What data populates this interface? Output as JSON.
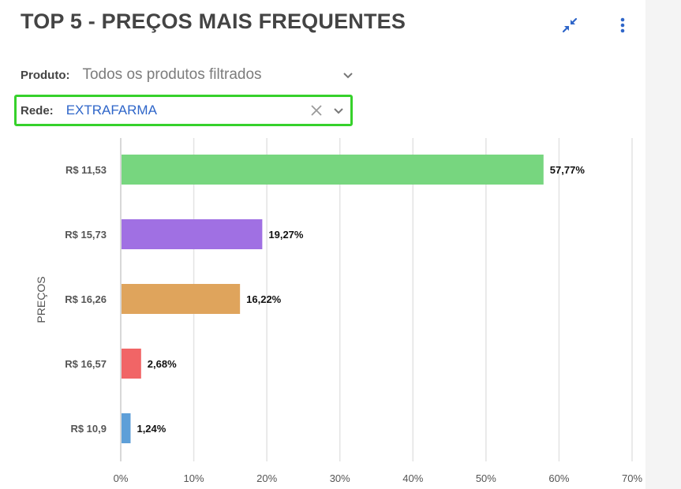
{
  "header": {
    "title": "TOP 5 - PREÇOS MAIS FREQUENTES",
    "collapse_icon": "collapse-arrows-icon",
    "menu_icon": "more-vertical-icon"
  },
  "filters": {
    "produto": {
      "label": "Produto:",
      "value": "Todos os produtos filtrados"
    },
    "rede": {
      "label": "Rede:",
      "value": "EXTRAFARMA"
    }
  },
  "colors": {
    "accent_blue": "#2f66c9",
    "highlight_green": "#36d12b"
  },
  "chart_data": {
    "type": "bar",
    "orientation": "horizontal",
    "title": "",
    "xlabel": "",
    "ylabel": "PREÇOS",
    "categories": [
      "R$ 11,53",
      "R$ 15,73",
      "R$ 16,26",
      "R$ 16,57",
      "R$ 10,9"
    ],
    "values": [
      57.77,
      19.27,
      16.22,
      2.68,
      1.24
    ],
    "data_labels": [
      "57,77%",
      "19,27%",
      "16,22%",
      "2,68%",
      "1,24%"
    ],
    "colors": [
      "#77d67f",
      "#a070e3",
      "#dfa45c",
      "#f16566",
      "#5e9fd8"
    ],
    "xlim": [
      0,
      70
    ],
    "x_ticks": [
      0,
      10,
      20,
      30,
      40,
      50,
      60,
      70
    ],
    "x_tick_labels": [
      "0%",
      "10%",
      "20%",
      "30%",
      "40%",
      "50%",
      "60%",
      "70%"
    ],
    "grid": true,
    "legend": "none"
  }
}
